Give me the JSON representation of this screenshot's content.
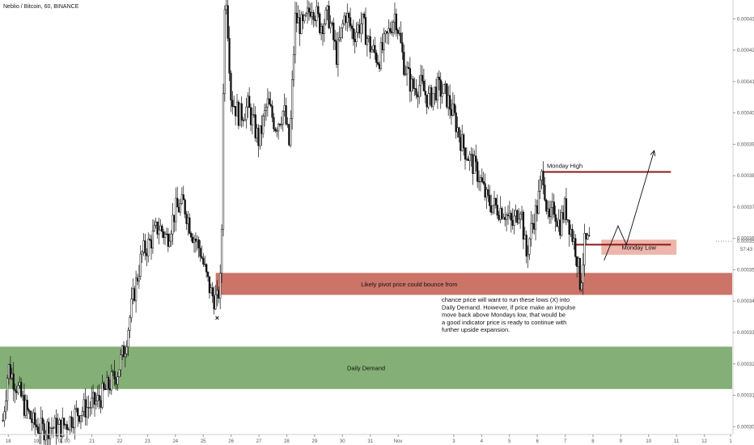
{
  "header": {
    "symbol_line": "Neblio / Bitcoin, 60, BINANCE"
  },
  "chart_data": {
    "type": "candlestick",
    "title": "Neblio / Bitcoin, 60, BINANCE",
    "interval": "60",
    "exchange": "BINANCE",
    "x_axis": {
      "ticks": [
        "18",
        "19",
        "01:00",
        "21",
        "22",
        "23",
        "24",
        "25",
        "26",
        "27",
        "28",
        "29",
        "30",
        "31",
        "Nov",
        "3",
        "4",
        "5",
        "6",
        "7",
        "8",
        "9",
        "10",
        "11",
        "12",
        "1"
      ],
      "range_days": [
        17.7,
        44.0
      ]
    },
    "y_axis": {
      "ticks": [
        "0.0004300",
        "0.0004200",
        "0.0004100",
        "0.0004000",
        "0.0003900",
        "0.0003800",
        "0.0003700",
        "0.0003600",
        "0.0003500",
        "0.0003400",
        "0.0003300",
        "0.0003200",
        "0.0003100",
        "0.0003000"
      ],
      "ylim": [
        0.0002975,
        0.000436
      ]
    },
    "price_path": [
      [
        17.8,
        0.000302
      ],
      [
        18.0,
        0.000319
      ],
      [
        18.3,
        0.000313
      ],
      [
        18.6,
        0.000306
      ],
      [
        18.9,
        0.000301
      ],
      [
        19.2,
        0.000299
      ],
      [
        19.5,
        0.0003
      ],
      [
        19.8,
        0.0002995
      ],
      [
        20.1,
        0.000301
      ],
      [
        20.4,
        0.000304
      ],
      [
        20.8,
        0.000306
      ],
      [
        21.2,
        0.000308
      ],
      [
        21.6,
        0.000313
      ],
      [
        21.9,
        0.000317
      ],
      [
        22.2,
        0.000326
      ],
      [
        22.5,
        0.000342
      ],
      [
        22.8,
        0.000355
      ],
      [
        23.1,
        0.000359
      ],
      [
        23.4,
        0.000364
      ],
      [
        23.7,
        0.00036
      ],
      [
        24.0,
        0.000369
      ],
      [
        24.3,
        0.000371
      ],
      [
        24.6,
        0.000362
      ],
      [
        24.9,
        0.000356
      ],
      [
        25.1,
        0.000348
      ],
      [
        25.3,
        0.000342
      ],
      [
        25.5,
        0.00034
      ],
      [
        25.65,
        0.000348
      ],
      [
        25.7,
        0.0004
      ],
      [
        25.8,
        0.000443
      ],
      [
        26.0,
        0.000405
      ],
      [
        26.3,
        0.000399
      ],
      [
        26.6,
        0.000402
      ],
      [
        27.0,
        0.000391
      ],
      [
        27.3,
        0.000403
      ],
      [
        27.6,
        0.000396
      ],
      [
        27.9,
        0.000401
      ],
      [
        28.1,
        0.000389
      ],
      [
        28.3,
        0.00043
      ],
      [
        28.6,
        0.000427
      ],
      [
        28.9,
        0.000435
      ],
      [
        29.2,
        0.000428
      ],
      [
        29.5,
        0.000431
      ],
      [
        29.8,
        0.000418
      ],
      [
        30.1,
        0.000432
      ],
      [
        30.4,
        0.000425
      ],
      [
        30.7,
        0.000429
      ],
      [
        31.0,
        0.000421
      ],
      [
        31.3,
        0.000417
      ],
      [
        31.6,
        0.000424
      ],
      [
        31.9,
        0.000432
      ],
      [
        32.2,
        0.000416
      ],
      [
        32.5,
        0.000408
      ],
      [
        32.8,
        0.000409
      ],
      [
        33.1,
        0.000404
      ],
      [
        33.4,
        0.000408
      ],
      [
        33.7,
        0.000406
      ],
      [
        34.0,
        0.000399
      ],
      [
        34.3,
        0.00039
      ],
      [
        34.6,
        0.000385
      ],
      [
        34.9,
        0.00038
      ],
      [
        35.2,
        0.000372
      ],
      [
        35.5,
        0.00037
      ],
      [
        35.8,
        0.000369
      ],
      [
        36.1,
        0.000364
      ],
      [
        36.4,
        0.000371
      ],
      [
        36.6,
        0.000354
      ],
      [
        36.8,
        0.000364
      ],
      [
        37.0,
        0.00037
      ],
      [
        37.2,
        0.000382
      ],
      [
        37.4,
        0.000364
      ],
      [
        37.6,
        0.00037
      ],
      [
        37.8,
        0.000364
      ],
      [
        38.0,
        0.00037
      ],
      [
        38.2,
        0.000363
      ],
      [
        38.4,
        0.000356
      ],
      [
        38.55,
        0.000345
      ],
      [
        38.7,
        0.000358
      ],
      [
        38.9,
        0.0003591
      ]
    ],
    "zones": [
      {
        "label": "Daily Demand",
        "from": 0.000312,
        "to": 0.0003255,
        "color": "#7aa86a"
      },
      {
        "label": "Likely pivot price could bounce from",
        "from": 0.000342,
        "to": 0.000349,
        "color": "#c8685a"
      },
      {
        "label": "Monday Low",
        "from": 0.0003548,
        "to": 0.0003596,
        "color": "#ebb0a4"
      }
    ],
    "levels": [
      {
        "label": "Monday High",
        "value": 0.0003812,
        "from_day": 37.2,
        "to_day": 41.8,
        "color": "#8b1a1a"
      },
      {
        "label": "Monday Low",
        "value": 0.000358,
        "from_day": 38.4,
        "to_day": 41.8,
        "color": "#8b1a1a"
      }
    ],
    "current_price": "0.0003591",
    "countdown": "57:43",
    "annotations": {
      "x_mark": "×",
      "projection_text": [
        "chance price will want to run these lows (X) into",
        "Daily Demand. However, if price make an impulse",
        "move back above Mondays low, that would be",
        "a good indicator price is ready to continue with",
        "further upside expansion."
      ]
    },
    "projection_path": [
      [
        39.4,
        0.000353
      ],
      [
        39.9,
        0.000364
      ],
      [
        40.2,
        0.000358
      ],
      [
        41.2,
        0.000388
      ]
    ],
    "colors": {
      "candle": "#111111",
      "level_line": "#8b1a1a",
      "axis_text": "#555555"
    },
    "grid": false
  }
}
